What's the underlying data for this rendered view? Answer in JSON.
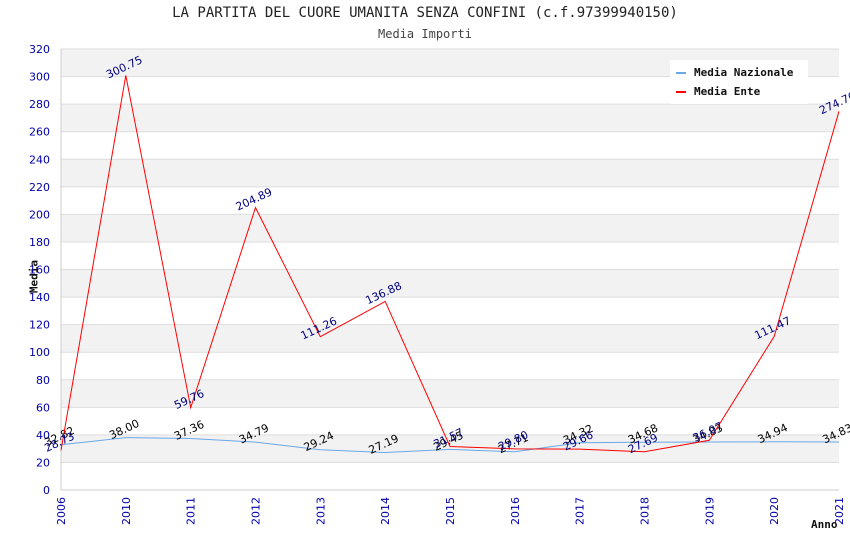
{
  "title": "LA PARTITA DEL CUORE UMANITA SENZA CONFINI (c.f.97399940150)",
  "subtitle": "Media Importi",
  "chart_data": {
    "type": "line",
    "ylabel": "Media",
    "xlabel": "Anno",
    "ylim": [
      0,
      320
    ],
    "yticks": [
      "0",
      "20",
      "40",
      "60",
      "80",
      "100",
      "120",
      "140",
      "160",
      "180",
      "200",
      "220",
      "240",
      "260",
      "280",
      "300",
      "320"
    ],
    "categories": [
      "2006",
      "2010",
      "2011",
      "2012",
      "2013",
      "2014",
      "2015",
      "2016",
      "2017",
      "2018",
      "2019",
      "2020",
      "2021"
    ],
    "grid": true,
    "legend_position": "top-right",
    "series": [
      {
        "name": "Media Nazionale",
        "color": "#6aa8e8",
        "label_color": "#000000",
        "values": [
          32.82,
          38.0,
          37.36,
          34.79,
          29.24,
          27.19,
          29.45,
          27.71,
          34.32,
          34.68,
          34.83,
          34.94,
          34.83
        ],
        "labels": [
          "32.82",
          "38.00",
          "37.36",
          "34.79",
          "29.24",
          "27.19",
          "29.45",
          "27.71",
          "34.32",
          "34.68",
          "34.83",
          "34.94",
          "34.83"
        ]
      },
      {
        "name": "Media Ente",
        "color": "#ff0000",
        "label_color": "#000080",
        "values": [
          28.73,
          300.75,
          59.76,
          204.89,
          111.26,
          136.88,
          31.57,
          29.8,
          29.66,
          27.69,
          36.07,
          111.47,
          274.76
        ],
        "labels": [
          "28.73",
          "300.75",
          "59.76",
          "204.89",
          "111.26",
          "136.88",
          "31.57",
          "29.80",
          "29.66",
          "27.69",
          "36.07",
          "111.47",
          "274.76"
        ]
      }
    ]
  },
  "colors": {
    "band": "#f2f2f2",
    "axis_text": "#0000aa",
    "grid": "#dddddd"
  }
}
